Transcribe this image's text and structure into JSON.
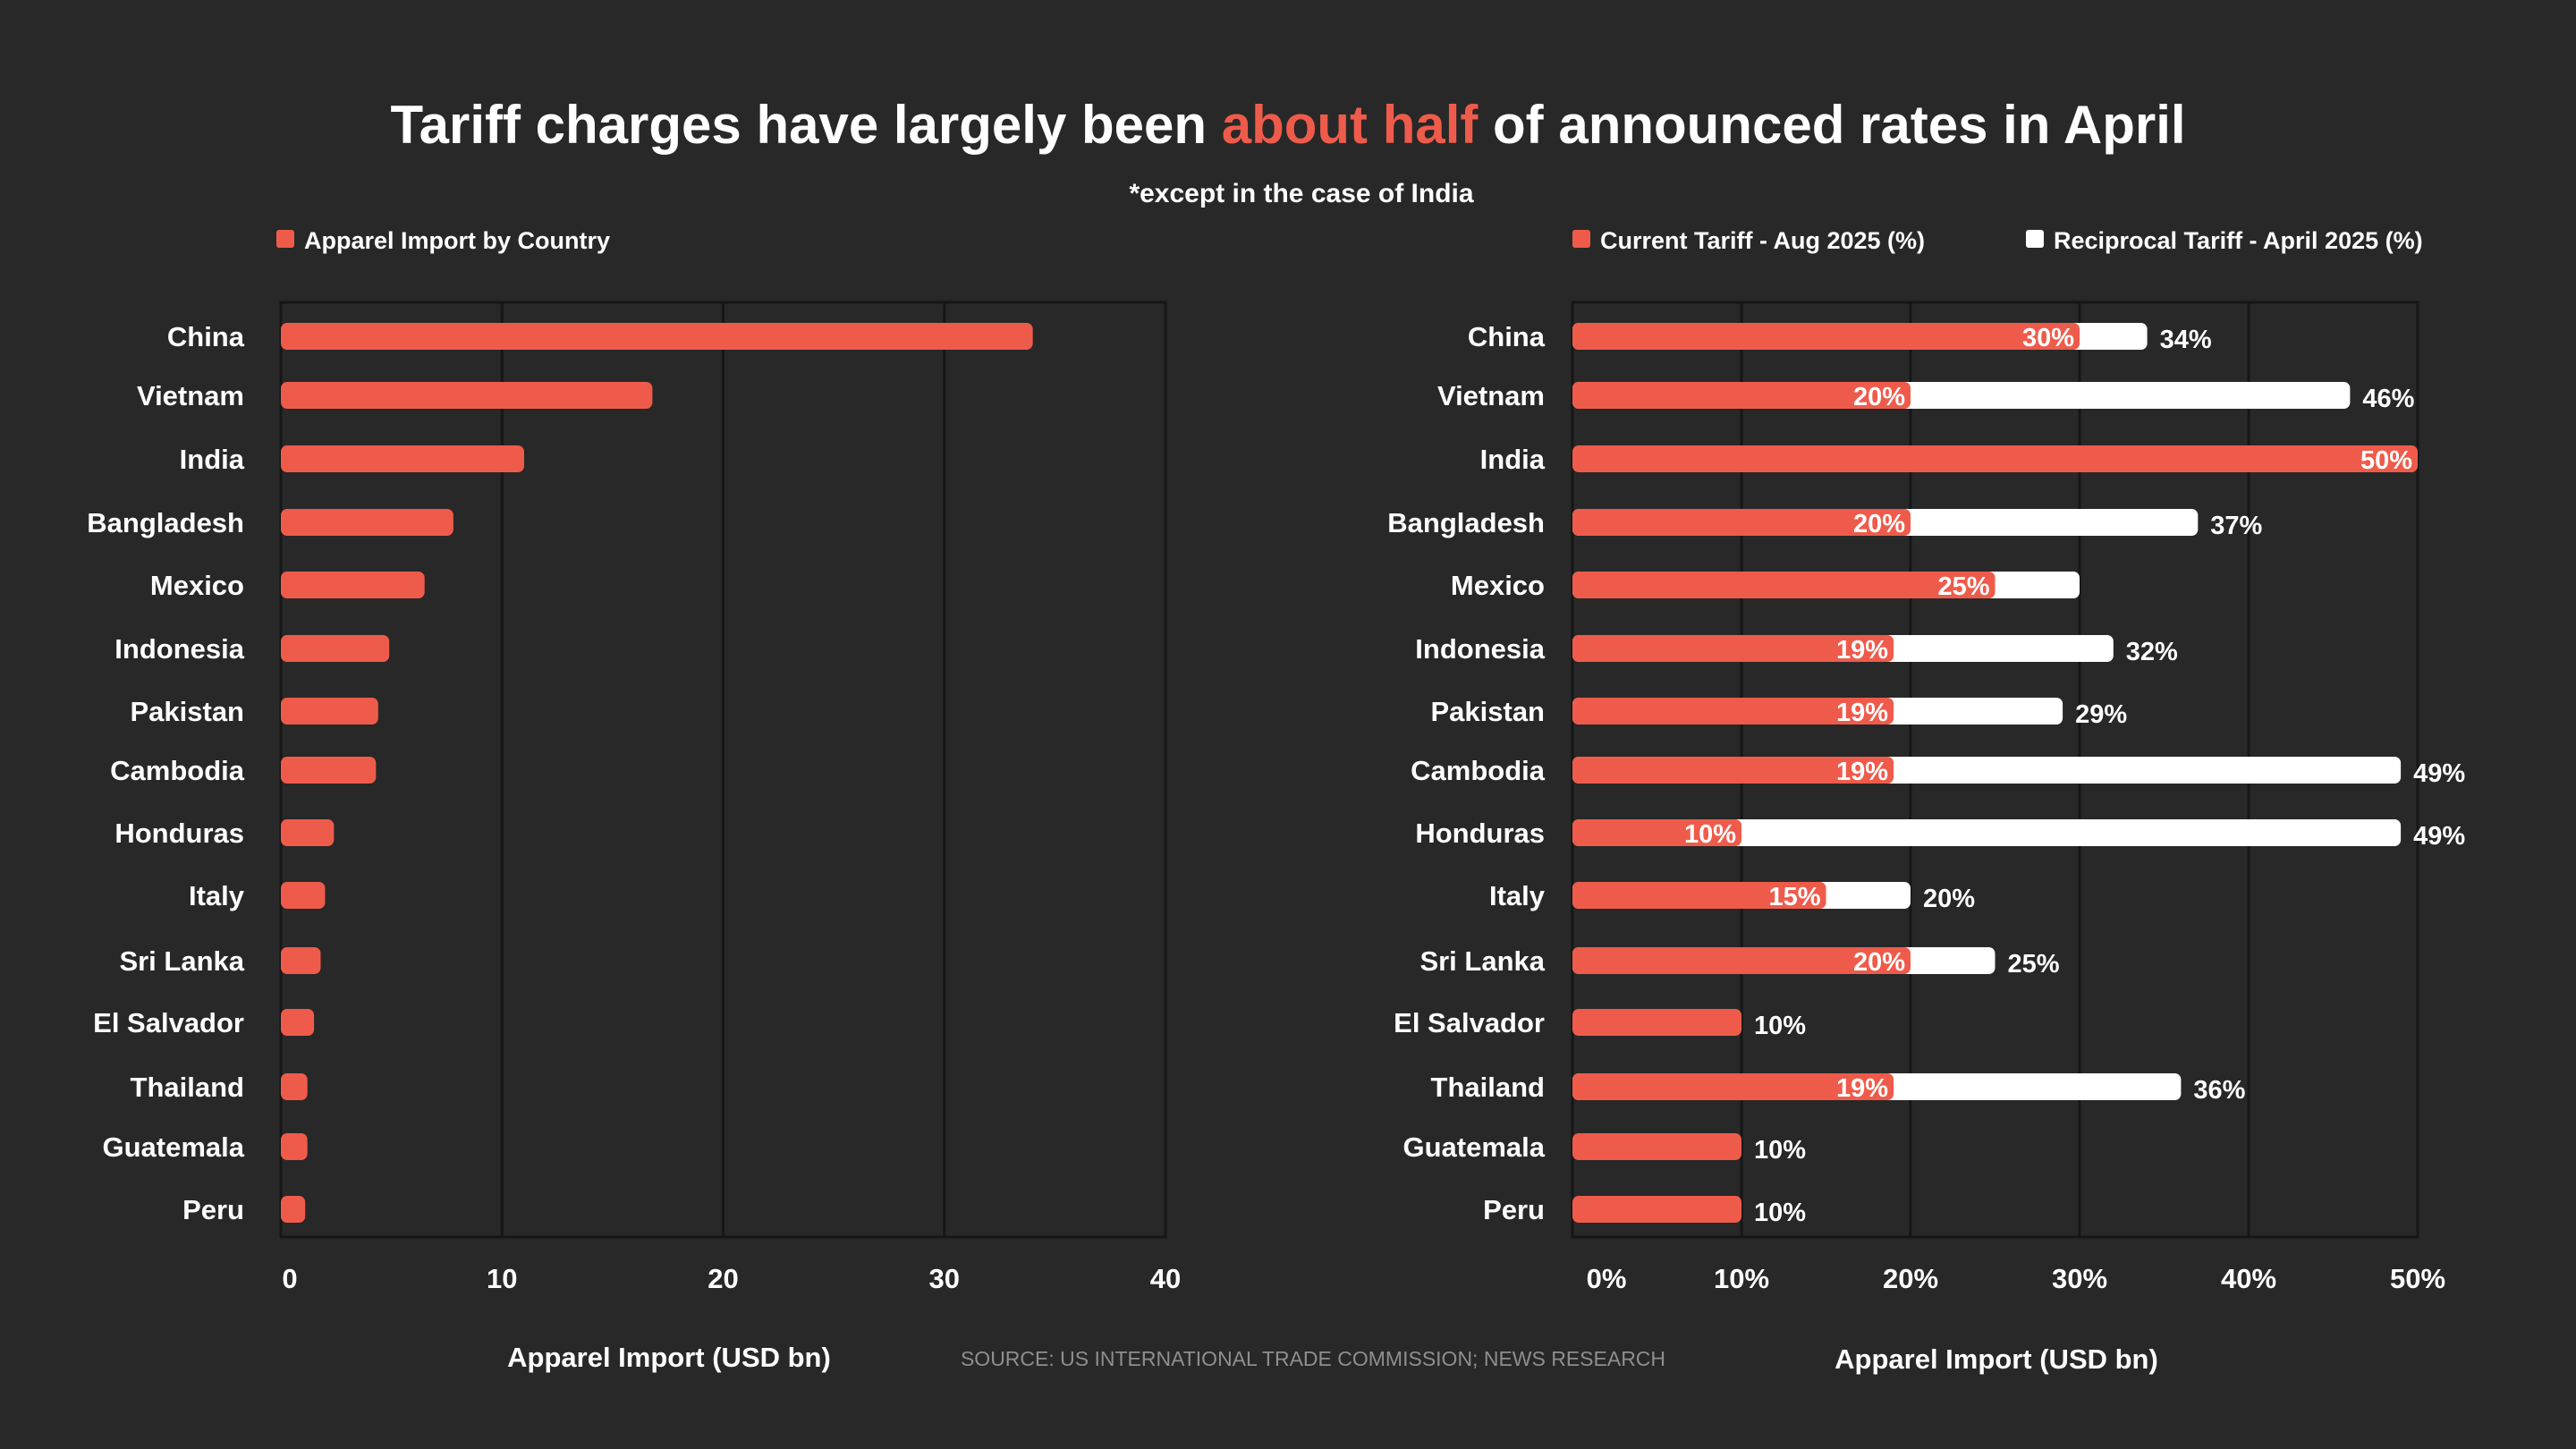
{
  "title": {
    "before": "Tariff charges have largely been ",
    "highlight": "about half",
    "after": " of announced rates in April"
  },
  "subtitle": "*except in the case of India",
  "source": "SOURCE: US INTERNATIONAL TRADE COMMISSION; NEWS RESEARCH",
  "colors": {
    "background": "#282828",
    "accent": "#ef5b4b",
    "white": "#ffffff",
    "grid": "#161616"
  },
  "chart_data": [
    {
      "type": "bar",
      "orientation": "horizontal",
      "legend": [
        "Apparel Import by Country"
      ],
      "categories": [
        "China",
        "Vietnam",
        "India",
        "Bangladesh",
        "Mexico",
        "Indonesia",
        "Pakistan",
        "Cambodia",
        "Honduras",
        "Italy",
        "Sri Lanka",
        "El Salvador",
        "Thailand",
        "Guatemala",
        "Peru"
      ],
      "values": [
        34.0,
        16.8,
        11.0,
        7.8,
        6.5,
        4.9,
        4.4,
        4.3,
        2.4,
        2.0,
        1.8,
        1.5,
        1.2,
        1.2,
        1.1
      ],
      "xlim": [
        0,
        40
      ],
      "xticks": [
        0,
        10,
        20,
        30,
        40
      ],
      "xtick_labels": [
        "0",
        "10",
        "20",
        "30",
        "40"
      ],
      "xlabel": "Apparel Import (USD bn)"
    },
    {
      "type": "bar",
      "orientation": "horizontal",
      "stacked_overlay": true,
      "legend": [
        "Current Tariff - Aug 2025 (%)",
        "Reciprocal Tariff - April 2025 (%)"
      ],
      "categories": [
        "China",
        "Vietnam",
        "India",
        "Bangladesh",
        "Mexico",
        "Indonesia",
        "Pakistan",
        "Cambodia",
        "Honduras",
        "Italy",
        "Sri Lanka",
        "El Salvador",
        "Thailand",
        "Guatemala",
        "Peru"
      ],
      "series": [
        {
          "name": "Current Tariff - Aug 2025 (%)",
          "values": [
            30,
            20,
            50,
            20,
            25,
            19,
            19,
            19,
            10,
            15,
            20,
            10,
            19,
            10,
            10
          ],
          "labels": [
            "30%",
            "20%",
            "50%",
            "20%",
            "25%",
            "19%",
            "19%",
            "19%",
            "10%",
            "15%",
            "20%",
            "",
            "19%",
            "",
            ""
          ]
        },
        {
          "name": "Reciprocal Tariff - April 2025 (%)",
          "values": [
            34,
            46,
            null,
            37,
            30,
            32,
            29,
            49,
            49,
            20,
            25,
            10,
            36,
            10,
            10
          ],
          "labels": [
            "34%",
            "46%",
            "",
            "37%",
            "",
            "32%",
            "29%",
            "49%",
            "49%",
            "20%",
            "25%",
            "10%",
            "36%",
            "10%",
            "10%"
          ]
        }
      ],
      "xlim": [
        0,
        50
      ],
      "xticks": [
        0,
        10,
        20,
        30,
        40,
        50
      ],
      "xtick_labels": [
        "0%",
        "10%",
        "20%",
        "30%",
        "40%",
        "50%"
      ],
      "xlabel": "Apparel Import (USD bn)"
    }
  ]
}
